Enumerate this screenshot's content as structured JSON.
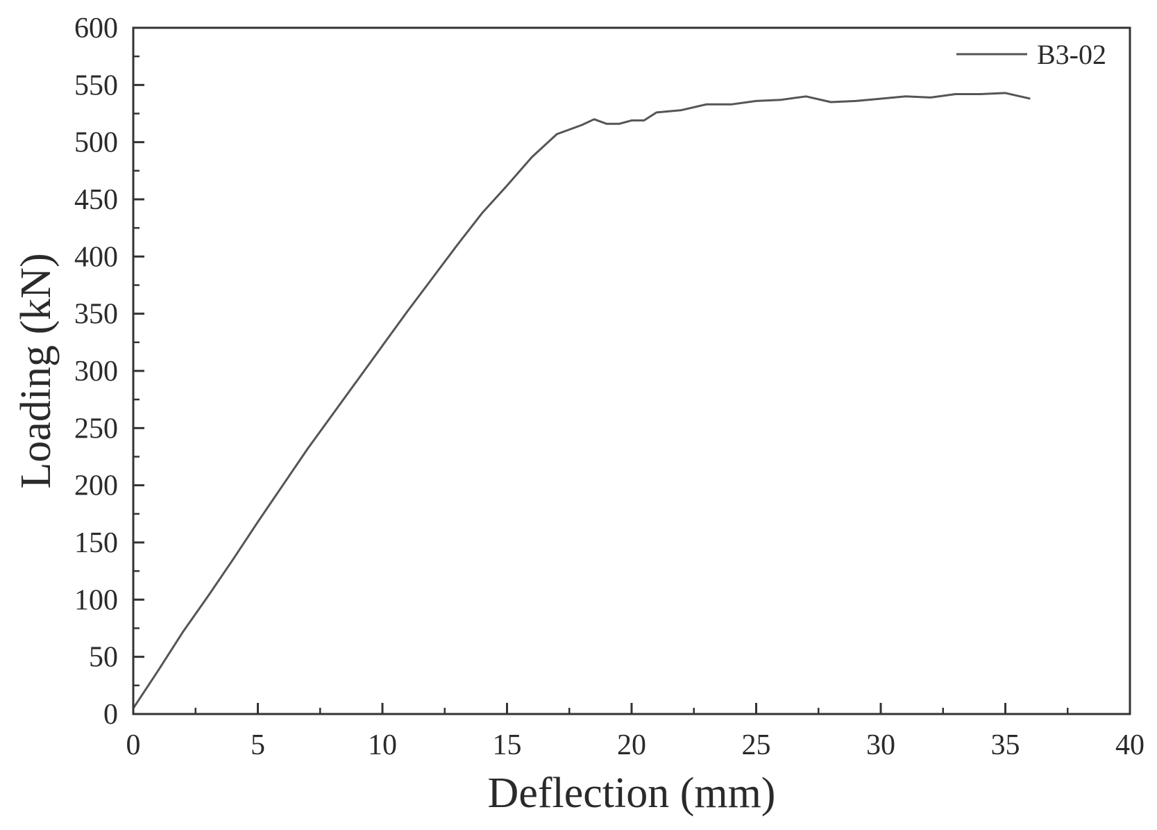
{
  "chart_data": {
    "type": "line",
    "title": "",
    "xlabel": "Deflection (mm)",
    "ylabel": "Loading (kN)",
    "xlim": [
      0,
      40
    ],
    "ylim": [
      0,
      600
    ],
    "xticks": [
      0,
      5,
      10,
      15,
      20,
      25,
      30,
      35,
      40
    ],
    "yticks": [
      0,
      50,
      100,
      150,
      200,
      250,
      300,
      350,
      400,
      450,
      500,
      550,
      600
    ],
    "grid": false,
    "legend_position": "top-right",
    "colors": {
      "line": "#555555",
      "axis": "#333333"
    },
    "series": [
      {
        "name": "B3-02",
        "x": [
          0,
          1,
          2,
          3,
          4,
          5,
          6,
          7,
          8,
          9,
          10,
          11,
          12,
          13,
          14,
          15,
          16,
          17,
          18,
          18.5,
          19,
          19.5,
          20,
          20.5,
          21,
          22,
          23,
          24,
          25,
          26,
          27,
          28,
          29,
          30,
          31,
          32,
          33,
          34,
          35,
          36
        ],
        "y": [
          5,
          38,
          72,
          103,
          135,
          168,
          200,
          232,
          262,
          292,
          322,
          352,
          381,
          410,
          438,
          462,
          487,
          507,
          515,
          520,
          516,
          516,
          519,
          519,
          526,
          528,
          533,
          533,
          536,
          537,
          540,
          535,
          536,
          538,
          540,
          539,
          542,
          542,
          543,
          538
        ]
      }
    ]
  }
}
